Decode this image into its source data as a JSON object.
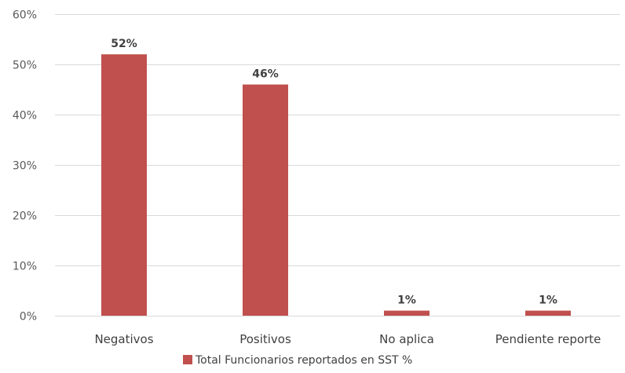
{
  "chart_data": {
    "type": "bar",
    "title": "",
    "xlabel": "",
    "ylabel": "",
    "categories": [
      "Negativos",
      "Positivos",
      "No aplica",
      "Pendiente reporte"
    ],
    "series": [
      {
        "name": "Total Funcionarios reportados en SST %",
        "values": [
          52,
          46,
          1,
          1
        ],
        "labels": [
          "52%",
          "46%",
          "1%",
          "1%"
        ],
        "color": "#c0504d"
      }
    ],
    "ylim": [
      0,
      60
    ],
    "yticks": [
      0,
      10,
      20,
      30,
      40,
      50,
      60
    ],
    "ytick_labels": [
      "0%",
      "10%",
      "20%",
      "30%",
      "40%",
      "50%",
      "60%"
    ],
    "grid": true,
    "legend": "bottom-center"
  }
}
